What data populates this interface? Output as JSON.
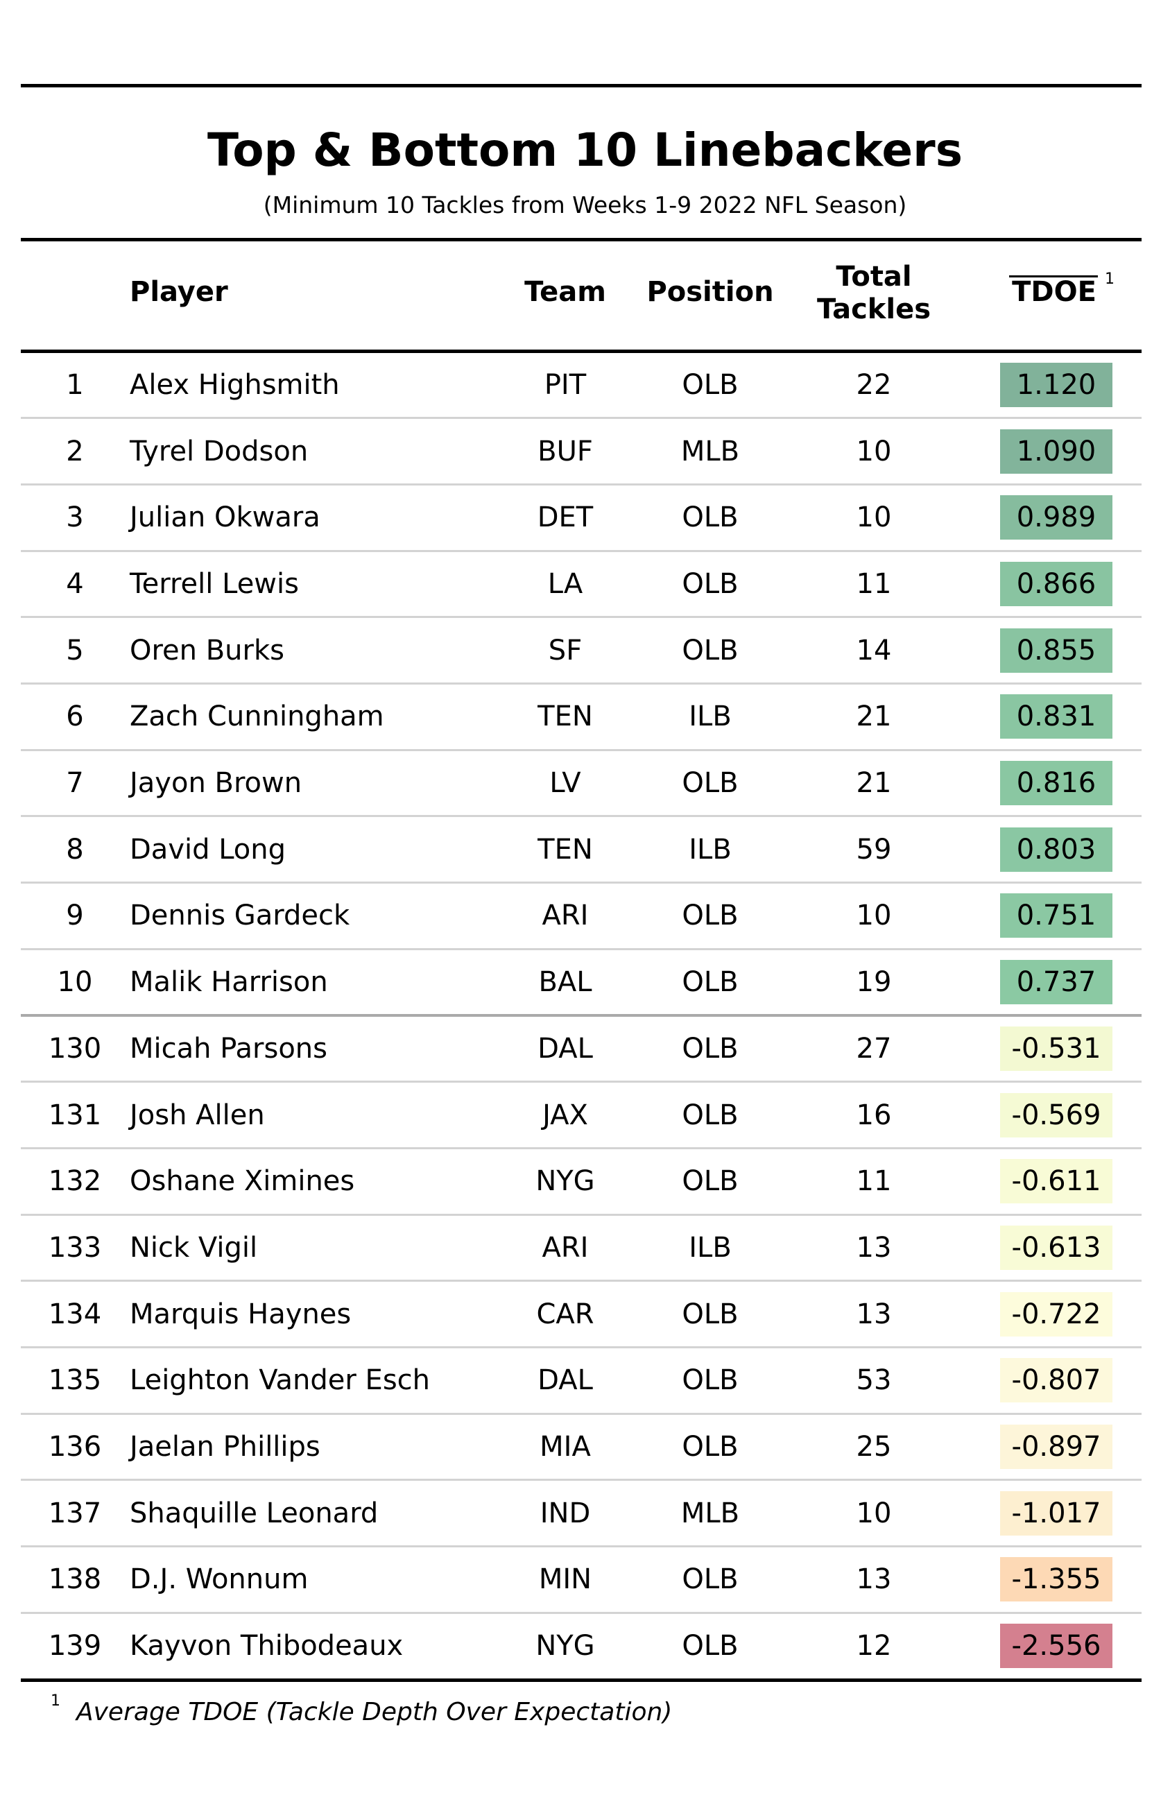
{
  "chart_data": {
    "type": "table",
    "title": "Top & Bottom 10 Linebackers",
    "subtitle": "(Minimum 10 Tackles from Weeks 1-9 2022 NFL Season)",
    "columns": [
      "Player",
      "Team",
      "Position",
      "Total Tackles",
      "TDOE"
    ],
    "header": {
      "player": "Player",
      "team": "Team",
      "position": "Position",
      "total_line1": "Total",
      "total_line2": "Tackles",
      "tdoe": "TDOE",
      "tdoe_note_mark": "1"
    },
    "rows": [
      {
        "rank": "1",
        "player": "Alex Highsmith",
        "team": "PIT",
        "position": "OLB",
        "tackles": "22",
        "tdoe": "1.120",
        "color": "#81b29a"
      },
      {
        "rank": "2",
        "player": "Tyrel Dodson",
        "team": "BUF",
        "position": "MLB",
        "tackles": "10",
        "tdoe": "1.090",
        "color": "#82b49b"
      },
      {
        "rank": "3",
        "player": "Julian Okwara",
        "team": "DET",
        "position": "OLB",
        "tackles": "10",
        "tdoe": "0.989",
        "color": "#86bc9e"
      },
      {
        "rank": "4",
        "player": "Terrell Lewis",
        "team": "LA",
        "position": "OLB",
        "tackles": "11",
        "tdoe": "0.866",
        "color": "#89c4a1"
      },
      {
        "rank": "5",
        "player": "Oren Burks",
        "team": "SF",
        "position": "OLB",
        "tackles": "14",
        "tdoe": "0.855",
        "color": "#89c4a1"
      },
      {
        "rank": "6",
        "player": "Zach Cunningham",
        "team": "TEN",
        "position": "ILB",
        "tackles": "21",
        "tdoe": "0.831",
        "color": "#8ac6a2"
      },
      {
        "rank": "7",
        "player": "Jayon Brown",
        "team": "LV",
        "position": "OLB",
        "tackles": "21",
        "tdoe": "0.816",
        "color": "#8ac7a2"
      },
      {
        "rank": "8",
        "player": "David Long",
        "team": "TEN",
        "position": "ILB",
        "tackles": "59",
        "tdoe": "0.803",
        "color": "#8ac7a3"
      },
      {
        "rank": "9",
        "player": "Dennis Gardeck",
        "team": "ARI",
        "position": "OLB",
        "tackles": "10",
        "tdoe": "0.751",
        "color": "#8bc8a3"
      },
      {
        "rank": "10",
        "player": "Malik Harrison",
        "team": "BAL",
        "position": "OLB",
        "tackles": "19",
        "tdoe": "0.737",
        "color": "#8bc9a3"
      },
      {
        "rank": "130",
        "player": "Micah Parsons",
        "team": "DAL",
        "position": "OLB",
        "tackles": "27",
        "tdoe": "-0.531",
        "color": "#f3f9d2"
      },
      {
        "rank": "131",
        "player": "Josh Allen",
        "team": "JAX",
        "position": "OLB",
        "tackles": "16",
        "tdoe": "-0.569",
        "color": "#f5fad4"
      },
      {
        "rank": "132",
        "player": "Oshane Ximines",
        "team": "NYG",
        "position": "OLB",
        "tackles": "11",
        "tdoe": "-0.611",
        "color": "#f8fbd6"
      },
      {
        "rank": "133",
        "player": "Nick Vigil",
        "team": "ARI",
        "position": "ILB",
        "tackles": "13",
        "tdoe": "-0.613",
        "color": "#f8fbd6"
      },
      {
        "rank": "134",
        "player": "Marquis Haynes",
        "team": "CAR",
        "position": "OLB",
        "tackles": "13",
        "tdoe": "-0.722",
        "color": "#fdfcdc"
      },
      {
        "rank": "135",
        "player": "Leighton Vander Esch",
        "team": "DAL",
        "position": "OLB",
        "tackles": "53",
        "tdoe": "-0.807",
        "color": "#fdf9dc"
      },
      {
        "rank": "136",
        "player": "Jaelan Phillips",
        "team": "MIA",
        "position": "OLB",
        "tackles": "25",
        "tdoe": "-0.897",
        "color": "#fdf5d9"
      },
      {
        "rank": "137",
        "player": "Shaquille Leonard",
        "team": "IND",
        "position": "MLB",
        "tackles": "10",
        "tdoe": "-1.017",
        "color": "#fdefd0"
      },
      {
        "rank": "138",
        "player": "D.J. Wonnum",
        "team": "MIN",
        "position": "OLB",
        "tackles": "13",
        "tdoe": "-1.355",
        "color": "#fdd9b5"
      },
      {
        "rank": "139",
        "player": "Kayvon Thibodeaux",
        "team": "NYG",
        "position": "OLB",
        "tackles": "12",
        "tdoe": "-2.556",
        "color": "#d4808f"
      }
    ],
    "footnote_mark": "1",
    "footnote_parts": [
      "Average TDOE (",
      "Tackle Depth Over Expectation",
      ")"
    ]
  }
}
